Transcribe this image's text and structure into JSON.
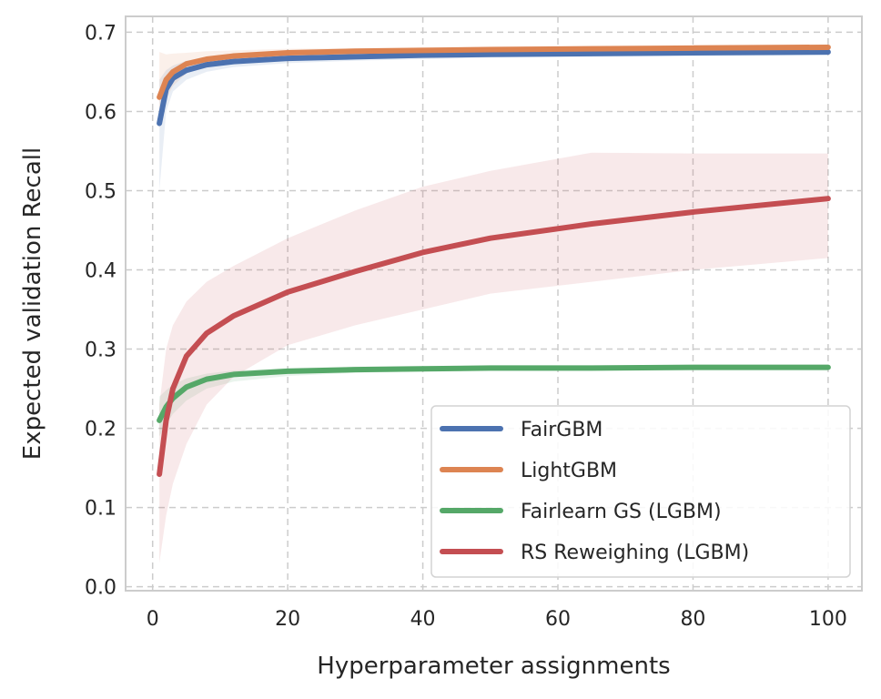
{
  "chart_data": {
    "type": "line",
    "title": "",
    "xlabel": "Hyperparameter assignments",
    "ylabel": "Expected validation Recall",
    "xlim": [
      -4,
      105
    ],
    "ylim": [
      -0.005,
      0.72
    ],
    "xticks": [
      0,
      20,
      40,
      60,
      80,
      100
    ],
    "yticks": [
      0.0,
      0.1,
      0.2,
      0.3,
      0.4,
      0.5,
      0.6,
      0.7
    ],
    "xtick_labels": [
      "0",
      "20",
      "40",
      "60",
      "80",
      "100"
    ],
    "ytick_labels": [
      "0.0",
      "0.1",
      "0.2",
      "0.3",
      "0.4",
      "0.5",
      "0.6",
      "0.7"
    ],
    "grid": true,
    "legend_position": "bottom-right",
    "x": [
      1,
      2,
      3,
      5,
      8,
      12,
      20,
      30,
      40,
      50,
      65,
      80,
      100
    ],
    "series": [
      {
        "name": "FairGBM",
        "color": "#4c72b0",
        "values": [
          0.585,
          0.628,
          0.642,
          0.652,
          0.659,
          0.663,
          0.667,
          0.669,
          0.671,
          0.672,
          0.673,
          0.674,
          0.675
        ],
        "lower": [
          0.5,
          0.6,
          0.625,
          0.64,
          0.65,
          0.656,
          0.661,
          0.664,
          0.666,
          0.668,
          0.669,
          0.67,
          0.671
        ],
        "upper": [
          0.64,
          0.652,
          0.658,
          0.664,
          0.667,
          0.669,
          0.671,
          0.673,
          0.674,
          0.675,
          0.676,
          0.677,
          0.678
        ]
      },
      {
        "name": "LightGBM",
        "color": "#dd8452",
        "values": [
          0.618,
          0.64,
          0.65,
          0.66,
          0.666,
          0.67,
          0.674,
          0.676,
          0.677,
          0.678,
          0.679,
          0.68,
          0.681
        ],
        "lower": [
          0.58,
          0.615,
          0.632,
          0.648,
          0.657,
          0.663,
          0.669,
          0.672,
          0.674,
          0.675,
          0.676,
          0.677,
          0.678
        ],
        "upper": [
          0.675,
          0.672,
          0.673,
          0.674,
          0.676,
          0.677,
          0.679,
          0.68,
          0.681,
          0.682,
          0.683,
          0.683,
          0.684
        ]
      },
      {
        "name": "Fairlearn GS (LGBM)",
        "color": "#55a868",
        "values": [
          0.21,
          0.227,
          0.238,
          0.252,
          0.262,
          0.268,
          0.272,
          0.274,
          0.275,
          0.276,
          0.276,
          0.277,
          0.277
        ],
        "lower": [
          0.19,
          0.205,
          0.218,
          0.235,
          0.25,
          0.259,
          0.266,
          0.27,
          0.272,
          0.273,
          0.274,
          0.275,
          0.276
        ],
        "upper": [
          0.24,
          0.248,
          0.255,
          0.263,
          0.269,
          0.273,
          0.276,
          0.278,
          0.279,
          0.279,
          0.279,
          0.279,
          0.279
        ]
      },
      {
        "name": "RS Reweighing (LGBM)",
        "color": "#c44e52",
        "values": [
          0.142,
          0.21,
          0.25,
          0.291,
          0.32,
          0.342,
          0.372,
          0.398,
          0.422,
          0.44,
          0.458,
          0.473,
          0.49
        ],
        "lower": [
          0.03,
          0.09,
          0.13,
          0.18,
          0.23,
          0.265,
          0.305,
          0.33,
          0.35,
          0.37,
          0.385,
          0.4,
          0.415
        ],
        "upper": [
          0.23,
          0.3,
          0.33,
          0.36,
          0.385,
          0.405,
          0.44,
          0.475,
          0.505,
          0.525,
          0.548,
          0.547,
          0.547
        ]
      }
    ]
  }
}
